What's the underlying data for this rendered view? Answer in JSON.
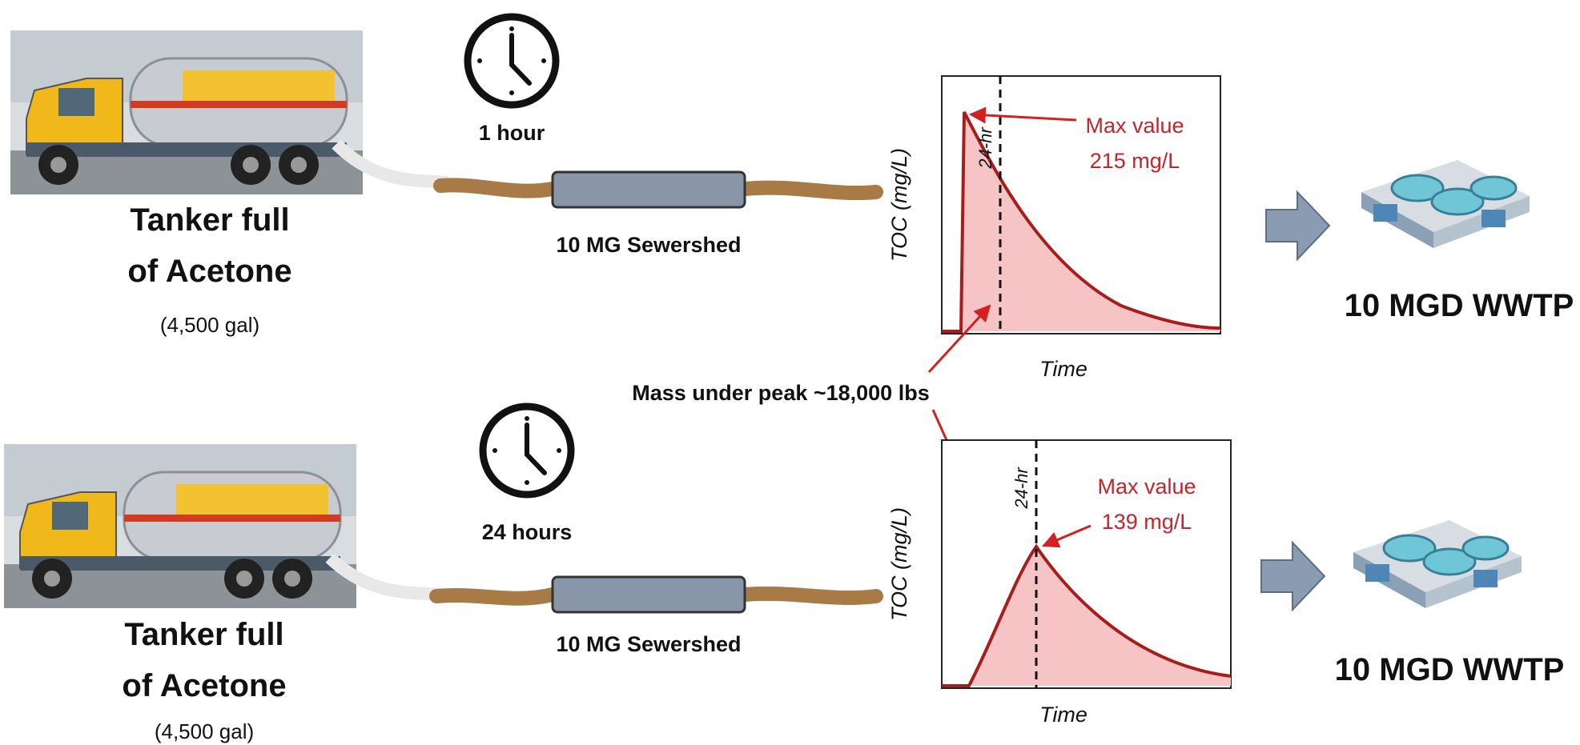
{
  "scenarios": [
    {
      "tanker_line1": "Tanker full",
      "tanker_line2": "of Acetone",
      "volume": "(4,500 gal)",
      "duration": "1 hour",
      "sewershed": "10 MG Sewershed",
      "y_axis_label": "TOC (mg/L)",
      "x_axis_label": "Time",
      "marker_label": "24-hr",
      "max_label": "Max value",
      "max_value": "215 mg/L",
      "plant": "10 MGD WWTP"
    },
    {
      "tanker_line1": "Tanker full",
      "tanker_line2": "of Acetone",
      "volume": "(4,500 gal)",
      "duration": "24 hours",
      "sewershed": "10 MG Sewershed",
      "y_axis_label": "TOC (mg/L)",
      "x_axis_label": "Time",
      "marker_label": "24-hr",
      "max_label": "Max value",
      "max_value": "139 mg/L",
      "plant": "10 MGD WWTP"
    }
  ],
  "annotation": "Mass under peak ~18,000 lbs"
}
